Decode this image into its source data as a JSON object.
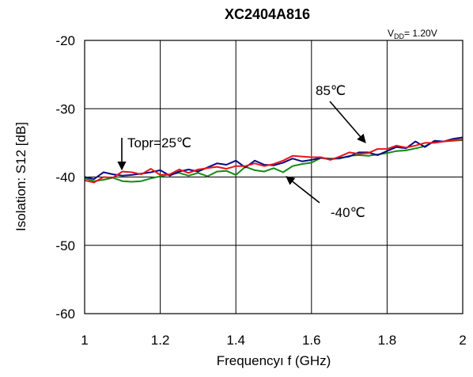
{
  "chart_data": {
    "type": "line",
    "title": "XC2404A816",
    "condition": {
      "prefix": "V",
      "subscript": "DD",
      "suffix": "= 1.20V"
    },
    "xlabel": "Frequencyı  f (GHz)",
    "ylabel": "Isolation: S12  [dB]",
    "xlim": [
      1,
      2
    ],
    "ylim": [
      -60,
      -20
    ],
    "xticks": [
      1,
      1.2,
      1.4,
      1.6,
      1.8,
      2
    ],
    "xtick_labels": [
      "1",
      "1.2",
      "1.4",
      "1.6",
      "1.8",
      "2"
    ],
    "yticks": [
      -60,
      -50,
      -40,
      -30,
      -20
    ],
    "ytick_labels": [
      "-60",
      "-50",
      "-40",
      "-30",
      "-20"
    ],
    "grid": true,
    "series": [
      {
        "name": "Topr=25℃",
        "color": "#e8141c",
        "x": [
          1.0,
          1.025,
          1.05,
          1.075,
          1.1,
          1.125,
          1.15,
          1.175,
          1.2,
          1.225,
          1.25,
          1.275,
          1.3,
          1.325,
          1.35,
          1.375,
          1.4,
          1.425,
          1.45,
          1.475,
          1.5,
          1.525,
          1.55,
          1.575,
          1.6,
          1.625,
          1.65,
          1.675,
          1.7,
          1.725,
          1.75,
          1.775,
          1.8,
          1.825,
          1.85,
          1.875,
          1.9,
          1.925,
          1.95,
          1.975,
          2.0
        ],
        "y": [
          -40.5,
          -40.8,
          -40.0,
          -40.1,
          -39.2,
          -39.3,
          -39.6,
          -38.8,
          -39.7,
          -39.6,
          -38.9,
          -39.4,
          -38.9,
          -38.7,
          -38.5,
          -38.8,
          -38.4,
          -38.4,
          -38.0,
          -38.4,
          -38.1,
          -37.6,
          -36.9,
          -37.0,
          -37.1,
          -37.1,
          -37.5,
          -37.0,
          -36.4,
          -36.6,
          -36.5,
          -35.9,
          -35.9,
          -35.4,
          -35.7,
          -35.4,
          -35.0,
          -35.0,
          -34.8,
          -34.6,
          -34.5
        ]
      },
      {
        "name": "85℃",
        "color": "#0a0a82",
        "x": [
          1.0,
          1.025,
          1.05,
          1.075,
          1.1,
          1.125,
          1.15,
          1.175,
          1.2,
          1.225,
          1.25,
          1.275,
          1.3,
          1.325,
          1.35,
          1.375,
          1.4,
          1.425,
          1.45,
          1.475,
          1.5,
          1.525,
          1.55,
          1.575,
          1.6,
          1.625,
          1.65,
          1.675,
          1.7,
          1.725,
          1.75,
          1.775,
          1.8,
          1.825,
          1.85,
          1.875,
          1.9,
          1.925,
          1.95,
          1.975,
          2.0
        ],
        "y": [
          -40.0,
          -40.3,
          -39.3,
          -39.6,
          -39.8,
          -39.7,
          -39.5,
          -39.3,
          -39.0,
          -39.8,
          -39.2,
          -38.9,
          -39.2,
          -38.6,
          -38.0,
          -38.2,
          -37.6,
          -38.6,
          -37.6,
          -38.2,
          -38.3,
          -37.9,
          -37.3,
          -37.7,
          -37.5,
          -37.2,
          -37.4,
          -37.2,
          -37.0,
          -36.4,
          -36.4,
          -36.8,
          -36.2,
          -35.6,
          -35.8,
          -34.8,
          -35.6,
          -34.7,
          -34.8,
          -34.4,
          -34.2
        ]
      },
      {
        "name": "-40℃",
        "color": "#138a13",
        "x": [
          1.0,
          1.025,
          1.05,
          1.075,
          1.1,
          1.125,
          1.15,
          1.175,
          1.2,
          1.225,
          1.25,
          1.275,
          1.3,
          1.325,
          1.35,
          1.375,
          1.4,
          1.425,
          1.45,
          1.475,
          1.5,
          1.525,
          1.55,
          1.575,
          1.6,
          1.625,
          1.65,
          1.675,
          1.7,
          1.725,
          1.75,
          1.775,
          1.8,
          1.825,
          1.85,
          1.875,
          1.9,
          1.925,
          1.95,
          1.975,
          2.0
        ],
        "y": [
          -40.2,
          -40.6,
          -40.4,
          -40.1,
          -40.6,
          -40.7,
          -40.6,
          -40.2,
          -39.9,
          -39.6,
          -39.4,
          -39.8,
          -39.4,
          -39.9,
          -39.2,
          -39.1,
          -39.7,
          -38.5,
          -39.0,
          -39.2,
          -38.7,
          -39.3,
          -38.4,
          -38.1,
          -37.9,
          -37.2,
          -37.3,
          -37.3,
          -36.9,
          -36.8,
          -36.9,
          -36.7,
          -36.5,
          -36.2,
          -36.1,
          -35.8,
          -35.5,
          -34.8,
          -34.8,
          -34.7,
          -34.6
        ]
      }
    ],
    "annotations": [
      {
        "text": "Topr=25℃",
        "points_to_x": 1.1,
        "points_to_y": -39.2
      },
      {
        "text": "85℃",
        "points_to_x": 1.77,
        "points_to_y": -35.9
      },
      {
        "text": "-40℃",
        "points_to_x": 1.53,
        "points_to_y": -39.0
      }
    ]
  }
}
